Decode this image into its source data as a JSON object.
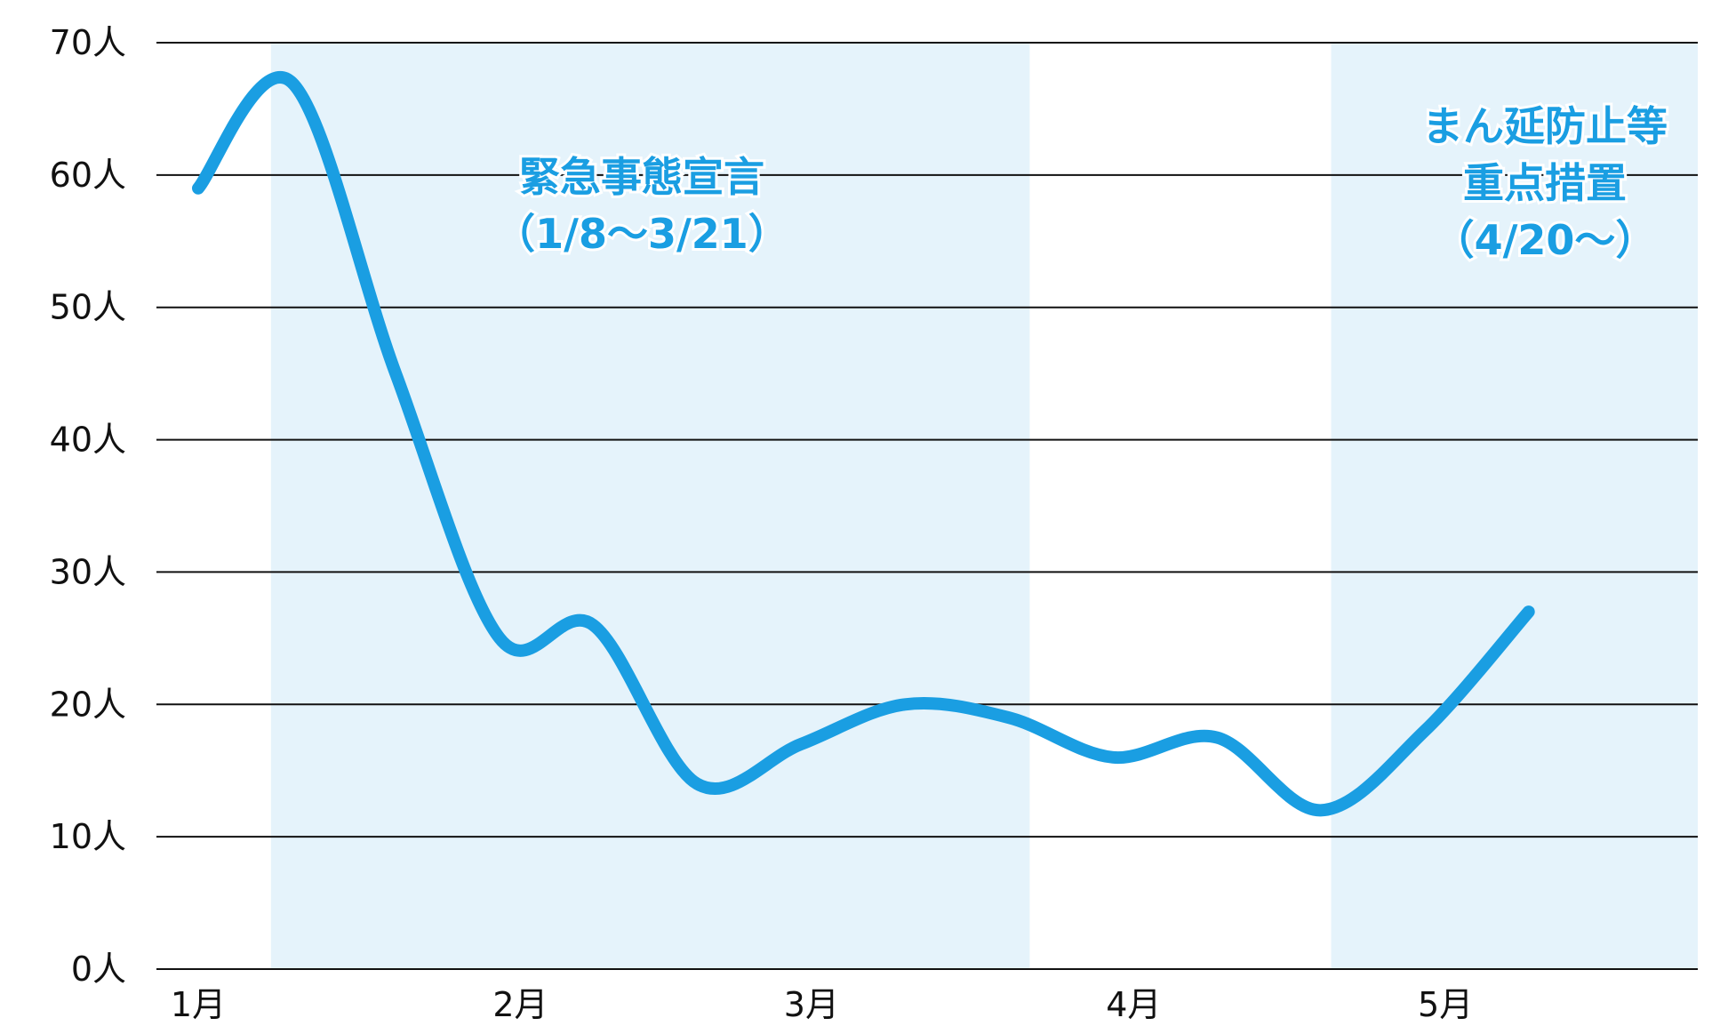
{
  "chart_data": {
    "type": "line",
    "x": [
      "1/1",
      "1/10",
      "1/20",
      "1/30",
      "2/8",
      "2/18",
      "2/28",
      "3/10",
      "3/20",
      "3/30",
      "4/9",
      "4/19",
      "4/29",
      "5/9"
    ],
    "series": [
      {
        "values": [
          59,
          67,
          45,
          25,
          26,
          14,
          17,
          20,
          19,
          16,
          17.5,
          12,
          18,
          27
        ]
      }
    ],
    "x_ticks": [
      "1月",
      "2月",
      "3月",
      "4月",
      "5月"
    ],
    "y_ticks": [
      "0人",
      "10人",
      "20人",
      "30人",
      "40人",
      "50人",
      "60人",
      "70人"
    ],
    "ylim": [
      0,
      70
    ],
    "grid": true,
    "line_color": "#1a9ee2",
    "shade_color": "#e5f3fb",
    "periods": [
      {
        "start": "1/8",
        "end": "3/21",
        "label_lines": [
          "緊急事態宣言",
          "（1/8〜3/21）"
        ]
      },
      {
        "start": "4/20",
        "end": "",
        "label_lines": [
          "まん延防止等",
          "重点措置",
          "（4/20〜）"
        ]
      }
    ]
  }
}
